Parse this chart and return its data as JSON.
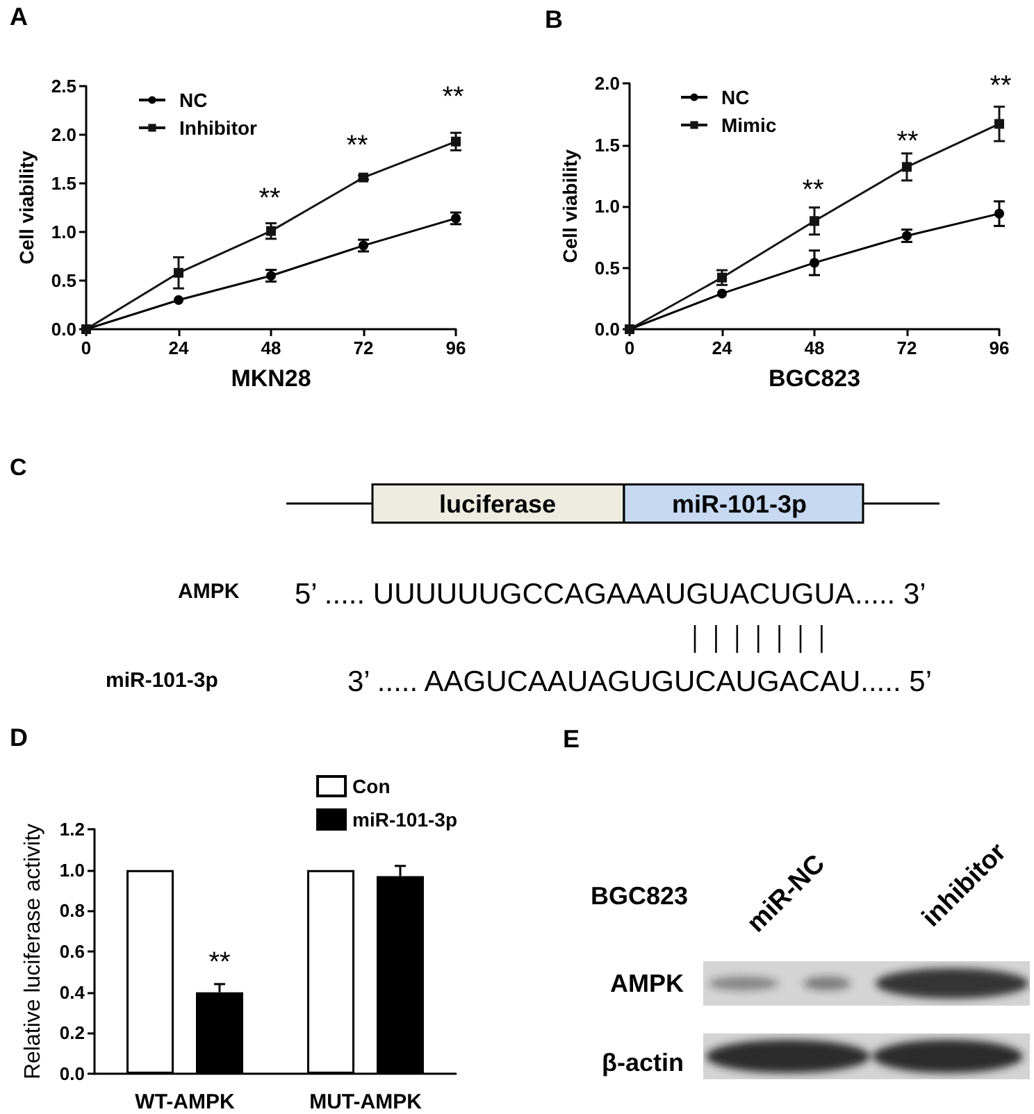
{
  "chart_data": [
    {
      "type": "line",
      "title": "A",
      "xlabel": "MKN28",
      "ylabel": "Cell viability",
      "x": [
        0,
        24,
        48,
        72,
        96
      ],
      "series": [
        {
          "name": "NC",
          "color": "#000000",
          "marker": "circle",
          "values": [
            0,
            0.3,
            0.55,
            0.86,
            1.14
          ],
          "errors": [
            null,
            null,
            0.06,
            0.06,
            0.06
          ]
        },
        {
          "name": "Inhibitor",
          "color": "#141414",
          "marker": "square",
          "values": [
            0,
            0.58,
            1.01,
            1.56,
            1.93
          ],
          "errors": [
            null,
            0.16,
            0.08,
            0.02,
            0.09
          ]
        }
      ],
      "xlim": [
        0,
        96
      ],
      "xticks": [
        0,
        24,
        48,
        72,
        96
      ],
      "ylim": [
        0,
        2.5
      ],
      "yticks": [
        {
          "value": 0,
          "label": "0.0"
        },
        0.5,
        {
          "value": 1,
          "label": "1.0"
        },
        1.5,
        {
          "value": 2,
          "label": "2.0"
        },
        2.5
      ],
      "legend": "top left",
      "line_style": "solid",
      "annotations": [
        "**",
        "**",
        "**"
      ]
    },
    {
      "type": "line",
      "title": "B",
      "xlabel": "BGC823",
      "ylabel": "Cell viability",
      "x": [
        0,
        24,
        48,
        72,
        96
      ],
      "series": [
        {
          "name": "NC",
          "color": "#000000",
          "marker": "circle",
          "values": [
            0,
            0.29,
            0.54,
            0.76,
            0.94
          ],
          "errors": [
            null,
            null,
            0.1,
            0.05,
            0.1
          ]
        },
        {
          "name": "Mimic",
          "color": "#141414",
          "marker": "square",
          "values": [
            0,
            0.42,
            0.88,
            1.32,
            1.67
          ],
          "errors": [
            null,
            0.06,
            0.11,
            0.11,
            0.14
          ]
        }
      ],
      "xlim": [
        0,
        96
      ],
      "xticks": [
        0,
        24,
        48,
        72,
        96
      ],
      "ylim": [
        0,
        2
      ],
      "yticks": [
        {
          "value": 0,
          "label": "0.0"
        },
        0.5,
        {
          "value": 1,
          "label": "1.0"
        },
        1.5,
        {
          "value": 2,
          "label": "2.0"
        }
      ],
      "legend": "top left",
      "line_style": "solid",
      "annotations": [
        "**",
        "**",
        "**"
      ]
    },
    {
      "type": "other",
      "title": "C",
      "annotations": [
        "luciferase",
        "miR-101-3p",
        "AMPK",
        "5’ ..... UUUUUUGCCAGAAAUGUACUGUA..... 3’",
        "miR-101-3p",
        "3’ ..... AAGUCAAUAGUGUCAUGACAU..... 5’"
      ]
    },
    {
      "type": "bar",
      "title": "D",
      "ylabel": "Relative luciferase activity",
      "categories": [
        "WT-AMPK",
        "MUT-AMPK"
      ],
      "series": [
        {
          "name": "Con",
          "color": "#ffffff",
          "values": [
            1,
            1
          ]
        },
        {
          "name": "miR-101-3p",
          "color": "#000000",
          "values": [
            0.4,
            0.97
          ],
          "errors": [
            [
              0.4,
              0.44
            ],
            [
              0.97,
              1.02
            ]
          ]
        }
      ],
      "ylim": [
        0,
        1.2
      ],
      "yticks": [
        {
          "value": 0,
          "label": "0.0"
        },
        0.2,
        0.4,
        0.6,
        0.8,
        {
          "value": 1,
          "label": "1.0"
        },
        1.2
      ],
      "legend": "top right",
      "annotations": [
        "**"
      ]
    },
    {
      "type": "other",
      "title": "E",
      "annotations": [
        "BGC823",
        "miR-NC",
        "inhibitor",
        "AMPK",
        "β-actin"
      ]
    }
  ]
}
